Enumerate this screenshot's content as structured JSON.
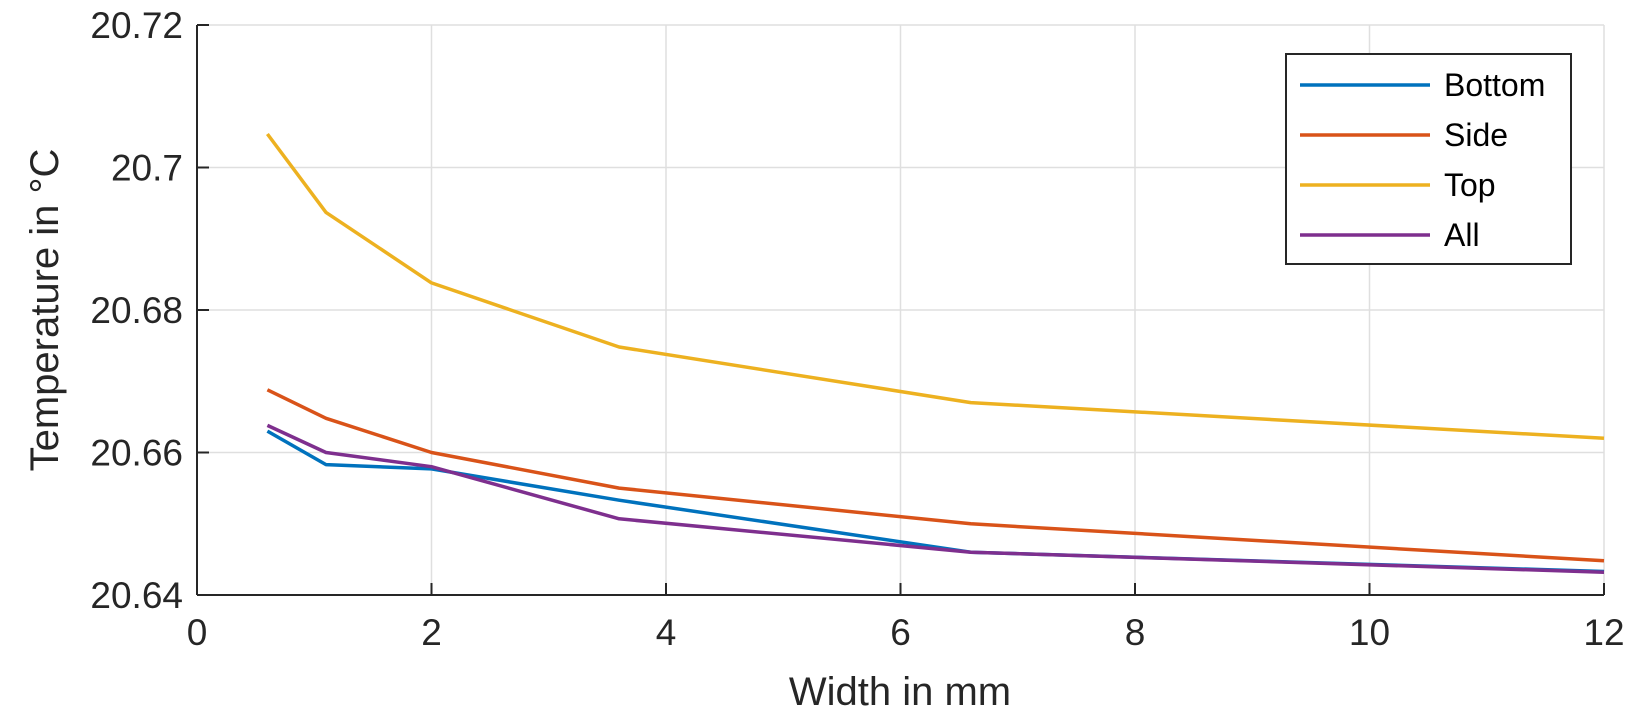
{
  "chart_data": {
    "type": "line",
    "xlabel": "Width in mm",
    "ylabel": "Temperature in °C",
    "xlim": [
      0,
      12
    ],
    "ylim": [
      20.64,
      20.72
    ],
    "xticks": [
      0,
      2,
      4,
      6,
      8,
      10,
      12
    ],
    "yticks": [
      20.64,
      20.66,
      20.68,
      20.7,
      20.72
    ],
    "xtick_labels": [
      "0",
      "2",
      "4",
      "6",
      "8",
      "10",
      "12"
    ],
    "ytick_labels": [
      "20.64",
      "20.66",
      "20.68",
      "20.7",
      "20.72"
    ],
    "grid": true,
    "legend_position": "top-right",
    "x": [
      0.6,
      1.1,
      2.0,
      3.6,
      6.6,
      12.0
    ],
    "series": [
      {
        "name": "Bottom",
        "color": "#0072BD",
        "values": [
          20.663,
          20.6583,
          20.6577,
          20.6533,
          20.646,
          20.6433
        ]
      },
      {
        "name": "Side",
        "color": "#D95319",
        "values": [
          20.6688,
          20.6648,
          20.66,
          20.655,
          20.65,
          20.6448
        ]
      },
      {
        "name": "Top",
        "color": "#EDB120",
        "values": [
          20.7047,
          20.6937,
          20.6838,
          20.6748,
          20.667,
          20.662
        ]
      },
      {
        "name": "All",
        "color": "#7E2F8E",
        "values": [
          20.6638,
          20.66,
          20.658,
          20.6507,
          20.646,
          20.6432
        ]
      }
    ]
  }
}
